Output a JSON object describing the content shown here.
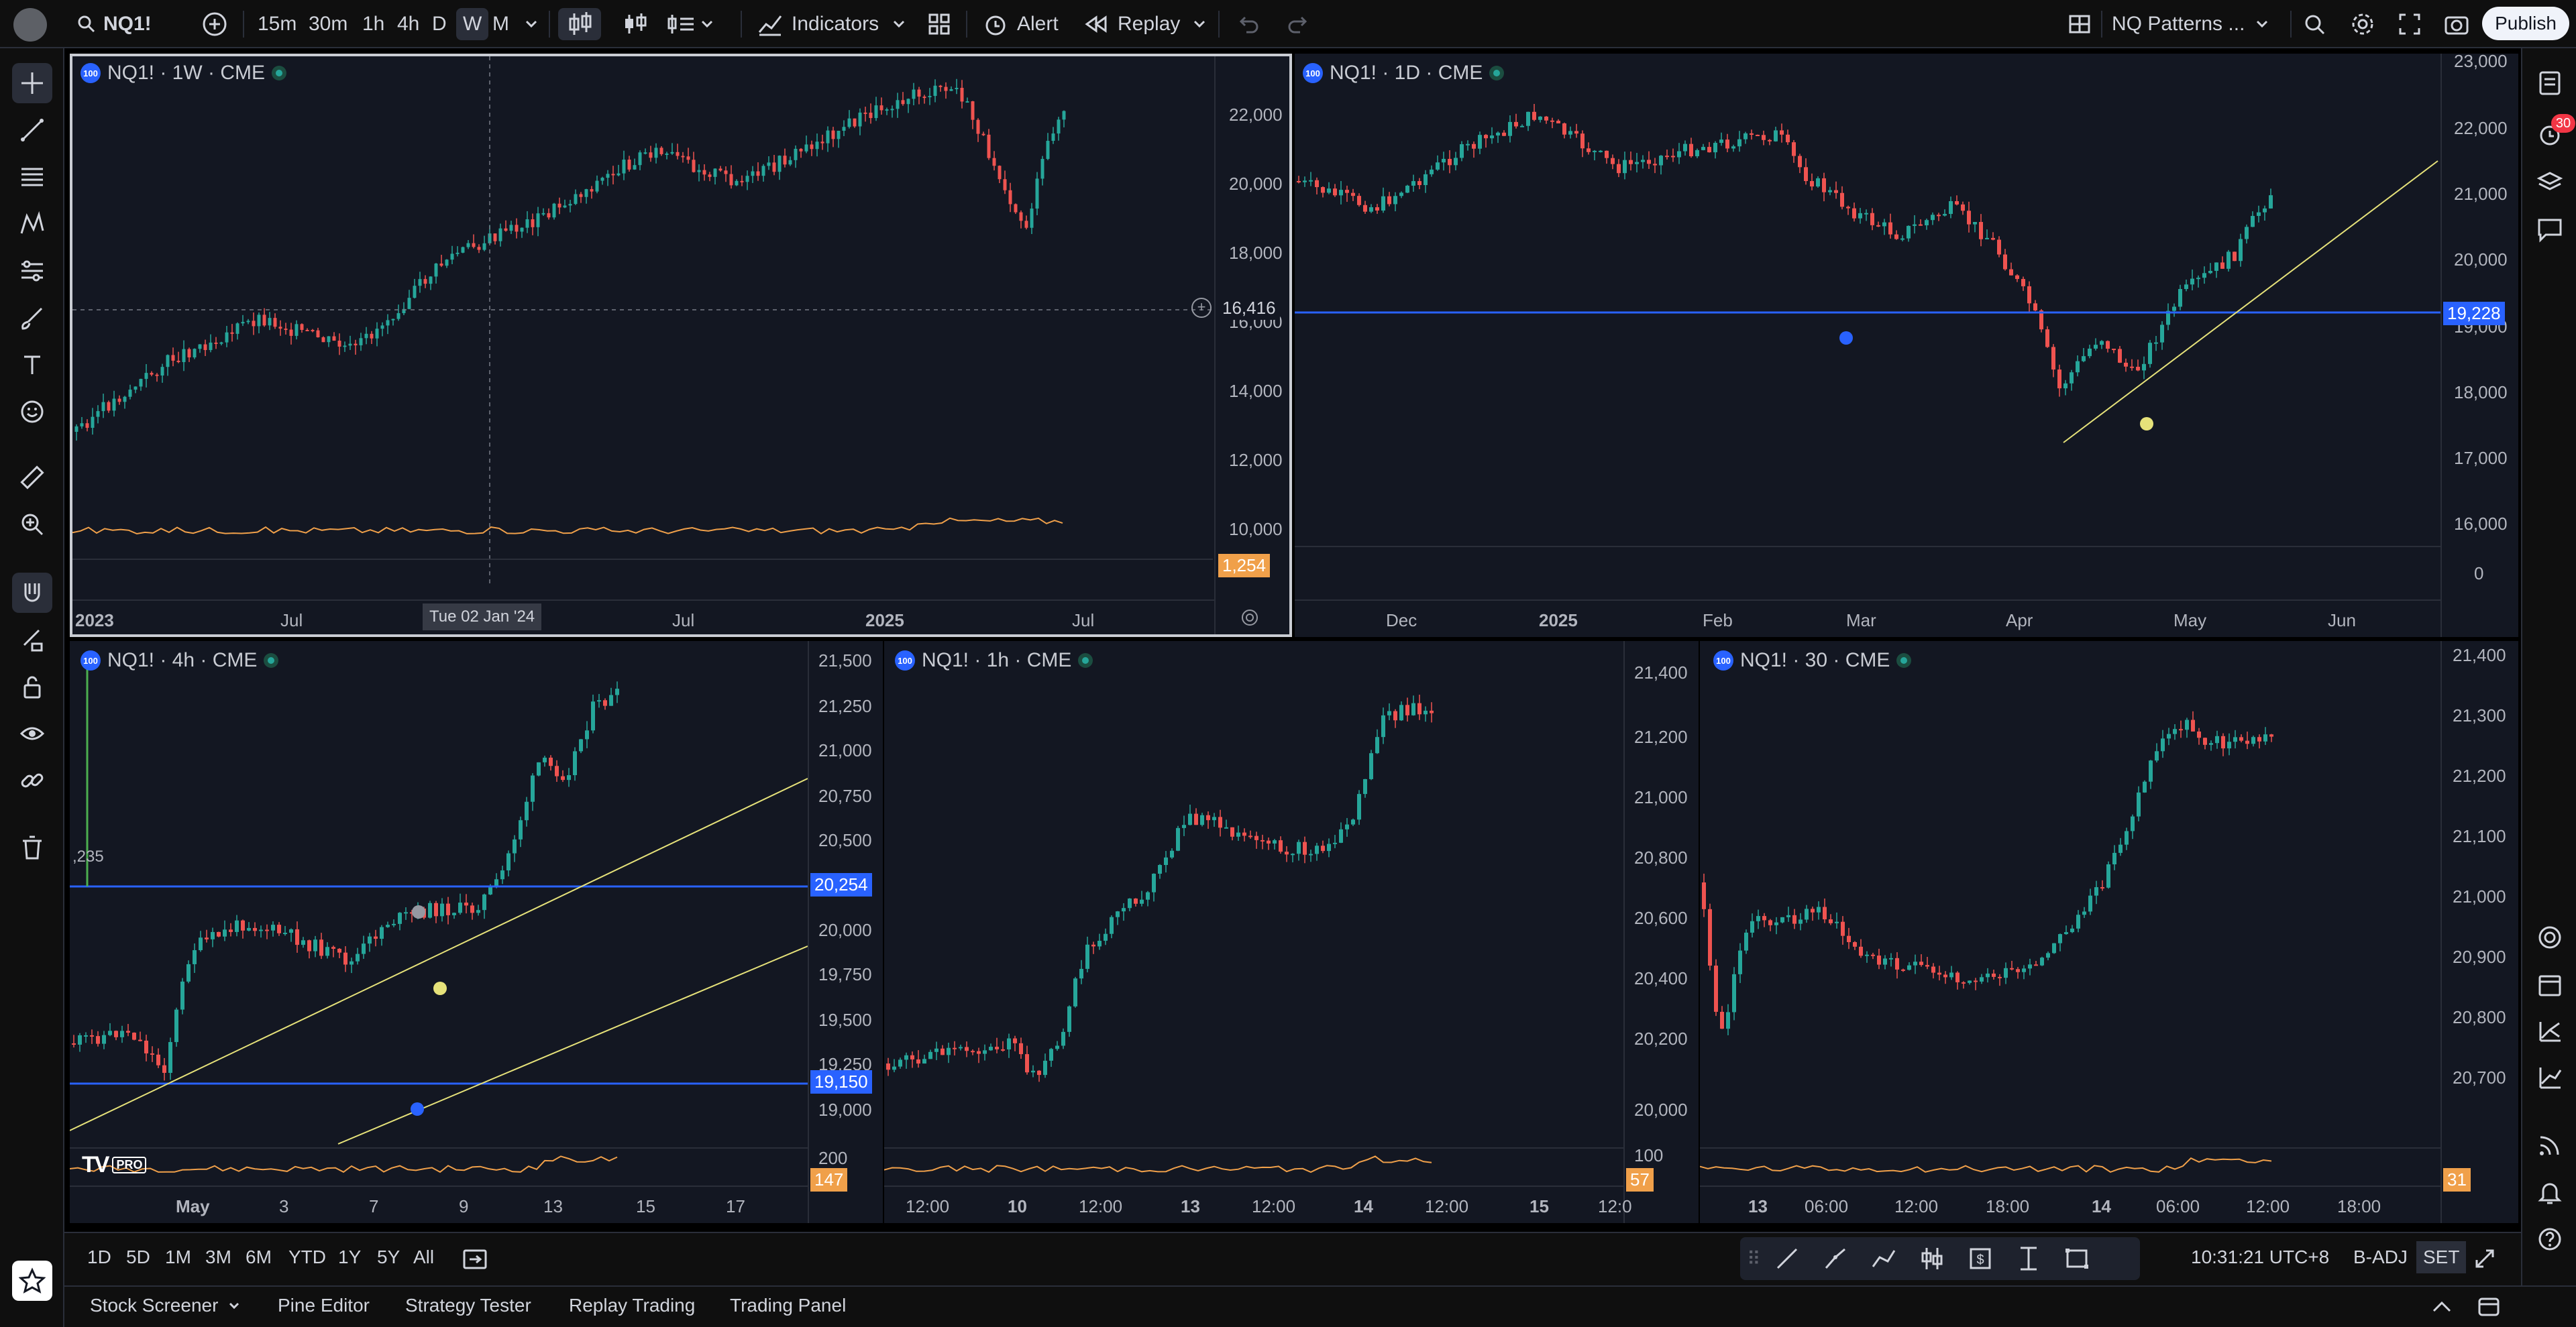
{
  "toolbar": {
    "symbol": "NQ1!",
    "intervals": [
      "15m",
      "30m",
      "1h",
      "4h",
      "D",
      "W",
      "M"
    ],
    "active_interval": "W",
    "indicators_label": "Indicators",
    "alert_label": "Alert",
    "replay_label": "Replay",
    "layout_name": "NQ Patterns ...",
    "publish_label": "Publish"
  },
  "notifications": {
    "count": "30"
  },
  "panes": [
    {
      "id": "weekly",
      "title": "NQ1! · 1W · CME",
      "price_ticks": [
        "22,000",
        "20,000",
        "18,000",
        "16,000",
        "14,000",
        "12,000",
        "10,000"
      ],
      "time_ticks": [
        "2023",
        "Jul",
        "Jul",
        "2025",
        "Jul"
      ],
      "crosshair_date": "Tue 02 Jan '24",
      "crosshair_price": "16,416",
      "volume_tag": "1,254"
    },
    {
      "id": "daily",
      "title": "NQ1! · 1D · CME",
      "price_ticks": [
        "23,000",
        "22,000",
        "21,000",
        "20,000",
        "19,000",
        "18,000",
        "17,000",
        "16,000",
        "0"
      ],
      "time_ticks": [
        "Dec",
        "2025",
        "Feb",
        "Mar",
        "Apr",
        "May",
        "Jun"
      ],
      "hline_price": "19,228"
    },
    {
      "id": "h4",
      "title": "NQ1! · 4h · CME",
      "price_ticks": [
        "21,500",
        "21,250",
        "21,000",
        "20,750",
        "20,500",
        "20,000",
        "19,750",
        "19,500",
        "19,250",
        "19,000",
        "200"
      ],
      "time_ticks": [
        "May",
        "3",
        "7",
        "9",
        "13",
        "15",
        "17"
      ],
      "hline_upper_price": "20,254",
      "hline_lower_price": "19,150",
      "volume_tag": "147",
      "side_value": ",235"
    },
    {
      "id": "h1",
      "title": "NQ1! · 1h · CME",
      "price_ticks": [
        "21,400",
        "21,200",
        "21,000",
        "20,800",
        "20,600",
        "20,400",
        "20,200",
        "20,000",
        "100"
      ],
      "time_ticks": [
        "12:00",
        "10",
        "12:00",
        "13",
        "12:00",
        "14",
        "12:00",
        "15",
        "12:0"
      ],
      "volume_tag": "57"
    },
    {
      "id": "m30",
      "title": "NQ1! · 30 · CME",
      "price_ticks": [
        "21,400",
        "21,300",
        "21,200",
        "21,100",
        "21,000",
        "20,900",
        "20,800",
        "20,700"
      ],
      "time_ticks": [
        "13",
        "06:00",
        "12:00",
        "18:00",
        "14",
        "06:00",
        "12:00",
        "18:00"
      ],
      "volume_tag": "31"
    }
  ],
  "bottom": {
    "ranges": [
      "1D",
      "5D",
      "1M",
      "3M",
      "6M",
      "YTD",
      "1Y",
      "5Y",
      "All"
    ],
    "clock": "10:31:21 UTC+8",
    "badj": "B-ADJ",
    "set": "SET"
  },
  "footer_tabs": [
    "Stock Screener",
    "Pine Editor",
    "Strategy Tester",
    "Replay Trading",
    "Trading Panel"
  ],
  "brand": {
    "logo": "TV",
    "pro": "PRO"
  },
  "colors": {
    "up": "#26a69a",
    "down": "#ef5350",
    "hline": "#2962ff",
    "trend": "#e6e27a",
    "volume": "#f0a04a",
    "bg": "#131722"
  }
}
